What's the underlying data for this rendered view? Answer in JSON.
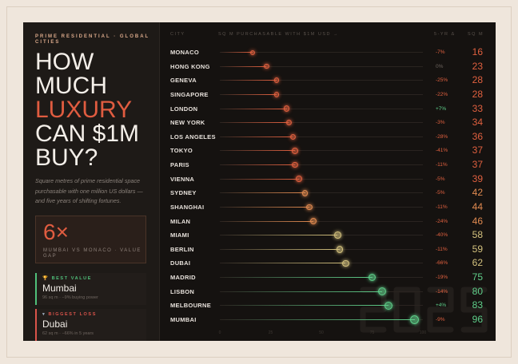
{
  "kicker": "PRIME RESIDENTIAL · GLOBAL CITIES",
  "title": {
    "l1": "HOW",
    "l2": "MUCH",
    "l3": "LUXURY",
    "l4": "CAN $1M",
    "l5": "BUY?"
  },
  "description": "Square metres of prime residential space purchasable with one million US dollars — and five years of shifting fortunes.",
  "gap": {
    "value": "6×",
    "label": "MUMBAI VS MONACO · VALUE GAP"
  },
  "best": {
    "tag": "BEST VALUE",
    "name": "Mumbai",
    "sub": "96 sq m · −9% buying power",
    "color": "#4fbf7a"
  },
  "loss": {
    "tag": "BIGGEST LOSS",
    "name": "Dubai",
    "sub": "62 sq m · −66% in 5 years",
    "color": "#d9534a"
  },
  "watermark": "2025",
  "chart_data": {
    "type": "lollipop",
    "headers": {
      "city": "CITY",
      "bar": "SQ M PURCHASABLE WITH $1M USD →",
      "change": "5-YR Δ",
      "value": "SQ M"
    },
    "xlim": [
      0,
      100
    ],
    "ticks": [
      "0",
      "25",
      "50",
      "75",
      "100"
    ],
    "cities": [
      "MONACO",
      "HONG KONG",
      "GENEVA",
      "SINGAPORE",
      "LONDON",
      "NEW YORK",
      "LOS ANGELES",
      "TOKYO",
      "PARIS",
      "VIENNA",
      "SYDNEY",
      "SHANGHAI",
      "MILAN",
      "MIAMI",
      "BERLIN",
      "DUBAI",
      "MADRID",
      "LISBON",
      "MELBOURNE",
      "MUMBAI"
    ],
    "values": [
      16,
      23,
      28,
      28,
      33,
      34,
      36,
      37,
      37,
      39,
      42,
      44,
      46,
      58,
      59,
      62,
      75,
      80,
      83,
      96
    ],
    "changes": [
      "-7%",
      "0%",
      "-25%",
      "-22%",
      "+7%",
      "-3%",
      "-28%",
      "-41%",
      "-11%",
      "-5%",
      "-5%",
      "-11%",
      "-24%",
      "-40%",
      "-11%",
      "-66%",
      "-19%",
      "-14%",
      "+4%",
      "-9%"
    ]
  }
}
